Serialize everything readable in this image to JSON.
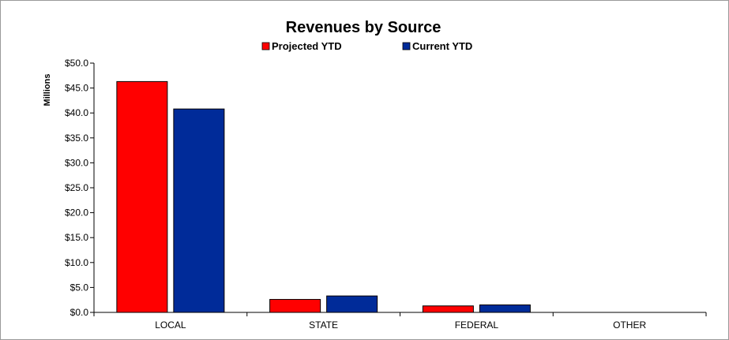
{
  "chart_data": {
    "type": "bar",
    "title": "Revenues by Source",
    "ylabel": "Millions",
    "xlabel": "",
    "categories": [
      "LOCAL",
      "STATE",
      "FEDERAL",
      "OTHER"
    ],
    "series": [
      {
        "name": "Projected YTD",
        "color": "#ff0000",
        "values": [
          46.3,
          2.6,
          1.3,
          0.0
        ]
      },
      {
        "name": "Current YTD",
        "color": "#002b99",
        "values": [
          40.8,
          3.3,
          1.5,
          0.0
        ]
      }
    ],
    "ylim": [
      0,
      50
    ],
    "yticks": [
      "$0.0",
      "$5.0",
      "$10.0",
      "$15.0",
      "$20.0",
      "$25.0",
      "$30.0",
      "$35.0",
      "$40.0",
      "$45.0",
      "$50.0"
    ],
    "grid": false,
    "legend_position": "top-center"
  }
}
